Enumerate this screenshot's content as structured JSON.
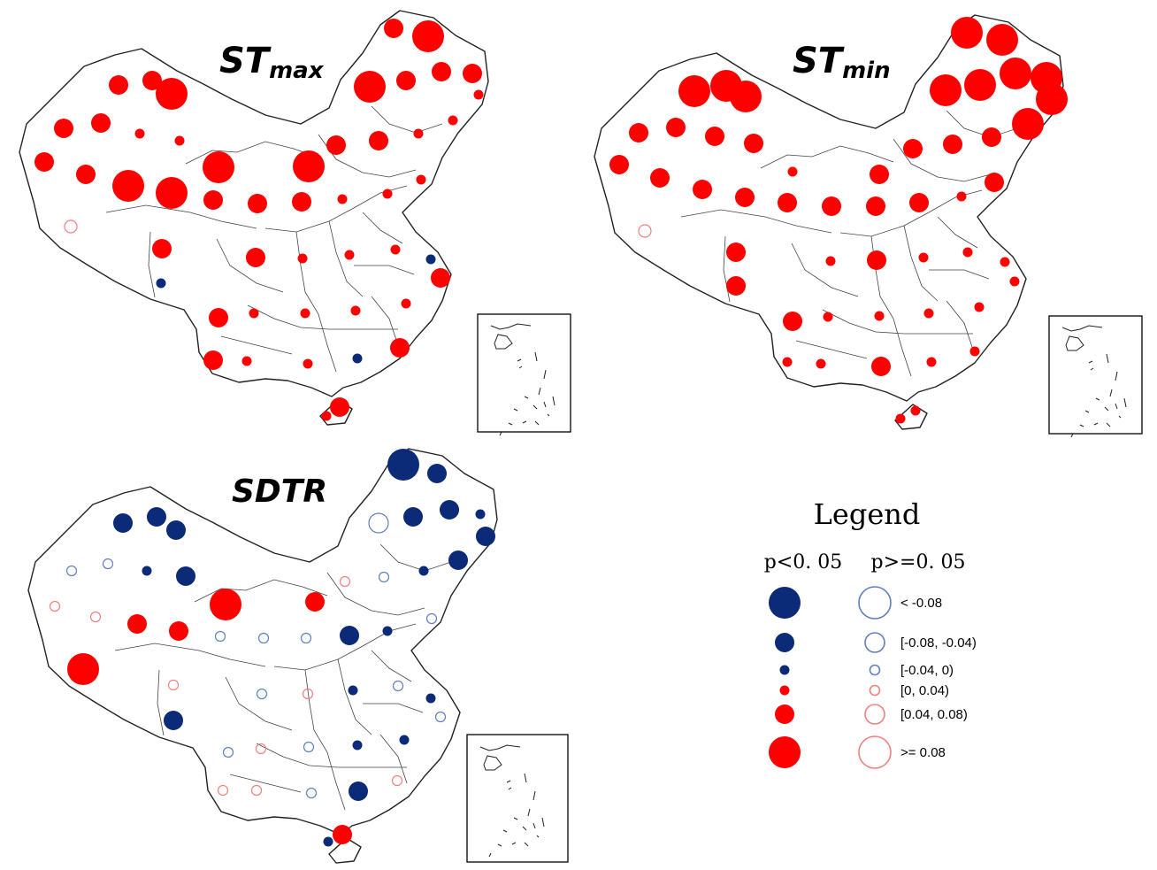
{
  "colors": {
    "positive": "#ff0000",
    "negative": "#0b2a78",
    "positive_open": "#f08080",
    "negative_open": "#5f7fbf"
  },
  "panels": [
    {
      "id": "stmax",
      "title_main": "ST",
      "title_sub": "max",
      "stations": [
        [
          445,
          32,
          2,
          "pos",
          true
        ],
        [
          484,
          41,
          4,
          "pos",
          true
        ],
        [
          134,
          96,
          2,
          "pos",
          true
        ],
        [
          172,
          91,
          2,
          "pos",
          true
        ],
        [
          194,
          106,
          4,
          "pos",
          true
        ],
        [
          418,
          98,
          4,
          "pos",
          true
        ],
        [
          459,
          91,
          2,
          "pos",
          true
        ],
        [
          499,
          81,
          2,
          "pos",
          true
        ],
        [
          534,
          83,
          2,
          "pos",
          true
        ],
        [
          541,
          107,
          1,
          "pos",
          true
        ],
        [
          72,
          145,
          2,
          "pos",
          true
        ],
        [
          114,
          139,
          2,
          "pos",
          true
        ],
        [
          158,
          151,
          1,
          "pos",
          true
        ],
        [
          203,
          159,
          1,
          "pos",
          true
        ],
        [
          380,
          164,
          2,
          "pos",
          true
        ],
        [
          428,
          159,
          2,
          "pos",
          true
        ],
        [
          473,
          151,
          1,
          "pos",
          true
        ],
        [
          512,
          136,
          1,
          "pos",
          true
        ],
        [
          50,
          183,
          2,
          "pos",
          true
        ],
        [
          97,
          197,
          2,
          "pos",
          true
        ],
        [
          145,
          210,
          4,
          "pos",
          true
        ],
        [
          194,
          218,
          4,
          "pos",
          true
        ],
        [
          247,
          189,
          4,
          "pos",
          true
        ],
        [
          349,
          188,
          4,
          "pos",
          true
        ],
        [
          241,
          226,
          2,
          "pos",
          true
        ],
        [
          291,
          230,
          2,
          "pos",
          true
        ],
        [
          341,
          228,
          2,
          "pos",
          true
        ],
        [
          387,
          225,
          1,
          "pos",
          true
        ],
        [
          438,
          219,
          1,
          "pos",
          true
        ],
        [
          476,
          203,
          1,
          "pos",
          true
        ],
        [
          80,
          256,
          3,
          "pos",
          false
        ],
        [
          183,
          281,
          2,
          "pos",
          true
        ],
        [
          289,
          291,
          2,
          "pos",
          true
        ],
        [
          342,
          292,
          1,
          "pos",
          true
        ],
        [
          395,
          288,
          1,
          "pos",
          true
        ],
        [
          447,
          282,
          1,
          "pos",
          true
        ],
        [
          487,
          293,
          1,
          "neg",
          true
        ],
        [
          498,
          314,
          2,
          "pos",
          true
        ],
        [
          182,
          320,
          1,
          "neg",
          true
        ],
        [
          247,
          359,
          2,
          "pos",
          true
        ],
        [
          287,
          354,
          1,
          "pos",
          true
        ],
        [
          345,
          354,
          1,
          "pos",
          true
        ],
        [
          402,
          351,
          1,
          "pos",
          true
        ],
        [
          459,
          343,
          1,
          "pos",
          true
        ],
        [
          241,
          407,
          2,
          "pos",
          true
        ],
        [
          279,
          408,
          1,
          "pos",
          true
        ],
        [
          348,
          411,
          1,
          "pos",
          true
        ],
        [
          404,
          405,
          1,
          "neg",
          true
        ],
        [
          452,
          393,
          2,
          "pos",
          true
        ],
        [
          384,
          460,
          2,
          "pos",
          true
        ],
        [
          369,
          470,
          1,
          "pos",
          true
        ]
      ]
    },
    {
      "id": "stmin",
      "title_main": "ST",
      "title_sub": "min",
      "stations": [
        [
          1093,
          37,
          4,
          "pos",
          true
        ],
        [
          1133,
          45,
          4,
          "pos",
          true
        ],
        [
          785,
          103,
          4,
          "pos",
          true
        ],
        [
          821,
          97,
          4,
          "pos",
          true
        ],
        [
          843,
          109,
          4,
          "pos",
          true
        ],
        [
          1069,
          102,
          4,
          "pos",
          true
        ],
        [
          1108,
          96,
          4,
          "pos",
          true
        ],
        [
          1148,
          83,
          4,
          "pos",
          true
        ],
        [
          1183,
          88,
          4,
          "pos",
          true
        ],
        [
          1189,
          112,
          4,
          "pos",
          true
        ],
        [
          722,
          150,
          2,
          "pos",
          true
        ],
        [
          764,
          144,
          2,
          "pos",
          true
        ],
        [
          808,
          154,
          2,
          "pos",
          true
        ],
        [
          852,
          162,
          2,
          "pos",
          true
        ],
        [
          1032,
          168,
          2,
          "pos",
          true
        ],
        [
          1077,
          163,
          2,
          "pos",
          true
        ],
        [
          1121,
          155,
          2,
          "pos",
          true
        ],
        [
          1162,
          140,
          4,
          "pos",
          true
        ],
        [
          700,
          186,
          2,
          "pos",
          true
        ],
        [
          746,
          201,
          2,
          "pos",
          true
        ],
        [
          794,
          214,
          2,
          "pos",
          true
        ],
        [
          896,
          194,
          1,
          "pos",
          true
        ],
        [
          994,
          197,
          2,
          "pos",
          true
        ],
        [
          842,
          223,
          2,
          "pos",
          true
        ],
        [
          890,
          229,
          2,
          "pos",
          true
        ],
        [
          940,
          233,
          2,
          "pos",
          true
        ],
        [
          990,
          233,
          2,
          "pos",
          true
        ],
        [
          1039,
          229,
          2,
          "pos",
          true
        ],
        [
          1087,
          222,
          1,
          "pos",
          true
        ],
        [
          1124,
          206,
          2,
          "pos",
          true
        ],
        [
          729,
          261,
          3,
          "pos",
          false
        ],
        [
          832,
          285,
          2,
          "pos",
          true
        ],
        [
          939,
          295,
          1,
          "pos",
          true
        ],
        [
          991,
          294,
          2,
          "pos",
          true
        ],
        [
          1044,
          291,
          1,
          "pos",
          true
        ],
        [
          1094,
          285,
          1,
          "pos",
          true
        ],
        [
          1136,
          296,
          1,
          "pos",
          true
        ],
        [
          1147,
          318,
          1,
          "pos",
          true
        ],
        [
          832,
          323,
          2,
          "pos",
          true
        ],
        [
          896,
          363,
          2,
          "pos",
          true
        ],
        [
          936,
          358,
          1,
          "pos",
          true
        ],
        [
          994,
          357,
          1,
          "pos",
          true
        ],
        [
          1050,
          354,
          1,
          "pos",
          true
        ],
        [
          1107,
          347,
          1,
          "pos",
          true
        ],
        [
          890,
          409,
          1,
          "pos",
          true
        ],
        [
          928,
          411,
          1,
          "pos",
          true
        ],
        [
          996,
          414,
          2,
          "pos",
          true
        ],
        [
          1053,
          409,
          1,
          "pos",
          true
        ],
        [
          1102,
          397,
          1,
          "pos",
          true
        ],
        [
          1035,
          464,
          1,
          "pos",
          true
        ],
        [
          1018,
          473,
          1,
          "pos",
          true
        ]
      ]
    },
    {
      "id": "sdtr",
      "title_main": "SDTR",
      "title_sub": "",
      "stations": [
        [
          456,
          525,
          4,
          "neg",
          true
        ],
        [
          494,
          535,
          2,
          "neg",
          true
        ],
        [
          139,
          591,
          2,
          "neg",
          true
        ],
        [
          177,
          584,
          2,
          "neg",
          true
        ],
        [
          199,
          599,
          2,
          "neg",
          true
        ],
        [
          428,
          591,
          2,
          "neg",
          false
        ],
        [
          467,
          584,
          2,
          "neg",
          true
        ],
        [
          508,
          576,
          2,
          "neg",
          true
        ],
        [
          543,
          581,
          1,
          "neg",
          true
        ],
        [
          549,
          606,
          2,
          "neg",
          true
        ],
        [
          81,
          645,
          1,
          "neg",
          false
        ],
        [
          122,
          637,
          1,
          "neg",
          false
        ],
        [
          166,
          645,
          1,
          "neg",
          true
        ],
        [
          210,
          651,
          2,
          "neg",
          true
        ],
        [
          390,
          657,
          1,
          "pos",
          false
        ],
        [
          434,
          652,
          1,
          "neg",
          false
        ],
        [
          479,
          645,
          1,
          "neg",
          true
        ],
        [
          518,
          633,
          2,
          "neg",
          true
        ],
        [
          62,
          685,
          1,
          "pos",
          false
        ],
        [
          108,
          697,
          1,
          "pos",
          false
        ],
        [
          155,
          705,
          2,
          "pos",
          true
        ],
        [
          202,
          713,
          2,
          "pos",
          true
        ],
        [
          255,
          683,
          4,
          "pos",
          true
        ],
        [
          356,
          680,
          2,
          "pos",
          true
        ],
        [
          249,
          719,
          1,
          "neg",
          false
        ],
        [
          298,
          721,
          1,
          "neg",
          false
        ],
        [
          346,
          721,
          1,
          "neg",
          false
        ],
        [
          395,
          718,
          2,
          "neg",
          true
        ],
        [
          438,
          713,
          1,
          "neg",
          true
        ],
        [
          488,
          699,
          1,
          "neg",
          false
        ],
        [
          94,
          756,
          4,
          "pos",
          true
        ],
        [
          196,
          774,
          1,
          "pos",
          false
        ],
        [
          296,
          784,
          1,
          "neg",
          false
        ],
        [
          348,
          784,
          1,
          "pos",
          false
        ],
        [
          399,
          780,
          1,
          "neg",
          true
        ],
        [
          450,
          775,
          1,
          "neg",
          false
        ],
        [
          487,
          789,
          1,
          "neg",
          true
        ],
        [
          498,
          810,
          1,
          "neg",
          false
        ],
        [
          196,
          814,
          2,
          "neg",
          true
        ],
        [
          258,
          850,
          1,
          "neg",
          false
        ],
        [
          295,
          846,
          1,
          "pos",
          false
        ],
        [
          349,
          844,
          1,
          "neg",
          false
        ],
        [
          404,
          842,
          1,
          "neg",
          true
        ],
        [
          457,
          836,
          1,
          "neg",
          true
        ],
        [
          252,
          893,
          1,
          "pos",
          false
        ],
        [
          290,
          893,
          1,
          "pos",
          false
        ],
        [
          352,
          896,
          1,
          "neg",
          false
        ],
        [
          405,
          894,
          2,
          "neg",
          true
        ],
        [
          449,
          882,
          1,
          "pos",
          false
        ],
        [
          387,
          943,
          2,
          "pos",
          true
        ],
        [
          371,
          951,
          1,
          "neg",
          true
        ]
      ]
    }
  ],
  "legend": {
    "title": "Legend",
    "header_significant": "p<0. 05",
    "header_nonsignificant": "p>=0. 05",
    "items": [
      {
        "label": "< -0.08",
        "kind": "neg",
        "size": 4
      },
      {
        "label": "[-0.08, -0.04)",
        "kind": "neg",
        "size": 2
      },
      {
        "label": "[-0.04, 0)",
        "kind": "neg",
        "size": 1
      },
      {
        "label": "[0, 0.04)",
        "kind": "pos",
        "size": 1
      },
      {
        "label": "[0.04, 0.08)",
        "kind": "pos",
        "size": 2
      },
      {
        "label": ">= 0.08",
        "kind": "pos",
        "size": 4
      }
    ]
  }
}
